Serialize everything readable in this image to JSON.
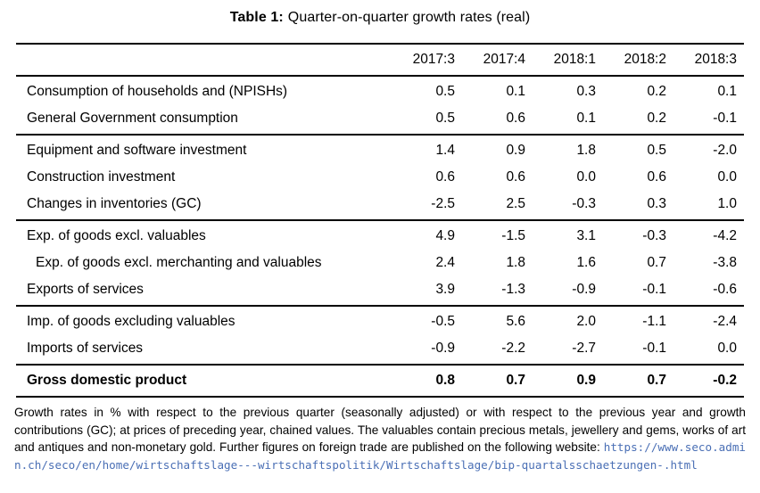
{
  "caption": {
    "label": "Table 1:",
    "text": "Quarter-on-quarter growth rates (real)"
  },
  "table": {
    "columns": [
      "2017:3",
      "2017:4",
      "2018:1",
      "2018:2",
      "2018:3"
    ],
    "groups": [
      {
        "rows": [
          {
            "label": "Consumption of households and (NPISHs)",
            "values": [
              "0.5",
              "0.1",
              "0.3",
              "0.2",
              "0.1"
            ]
          },
          {
            "label": "General Government consumption",
            "values": [
              "0.5",
              "0.6",
              "0.1",
              "0.2",
              "-0.1"
            ]
          }
        ]
      },
      {
        "rows": [
          {
            "label": "Equipment and software investment",
            "values": [
              "1.4",
              "0.9",
              "1.8",
              "0.5",
              "-2.0"
            ]
          },
          {
            "label": "Construction investment",
            "values": [
              "0.6",
              "0.6",
              "0.0",
              "0.6",
              "0.0"
            ]
          },
          {
            "label": "Changes in inventories (GC)",
            "values": [
              "-2.5",
              "2.5",
              "-0.3",
              "0.3",
              "1.0"
            ]
          }
        ]
      },
      {
        "rows": [
          {
            "label": "Exp. of goods excl. valuables",
            "values": [
              "4.9",
              "-1.5",
              "3.1",
              "-0.3",
              "-4.2"
            ]
          },
          {
            "label": "Exp. of goods excl. merchanting and valuables",
            "values": [
              "2.4",
              "1.8",
              "1.6",
              "0.7",
              "-3.8"
            ]
          },
          {
            "label": "Exports of services",
            "values": [
              "3.9",
              "-1.3",
              "-0.9",
              "-0.1",
              "-0.6"
            ]
          }
        ]
      },
      {
        "rows": [
          {
            "label": "Imp. of goods excluding valuables",
            "values": [
              "-0.5",
              "5.6",
              "2.0",
              "-1.1",
              "-2.4"
            ]
          },
          {
            "label": "Imports of services",
            "values": [
              "-0.9",
              "-2.2",
              "-2.7",
              "-0.1",
              "0.0"
            ]
          }
        ]
      },
      {
        "rows": [
          {
            "label": "Gross domestic product",
            "values": [
              "0.8",
              "0.7",
              "0.9",
              "0.7",
              "-0.2"
            ]
          }
        ]
      }
    ]
  },
  "footnote": {
    "text": "Growth rates in % with respect to the previous quarter (seasonally adjusted) or with respect to the previous year and growth contributions (GC); at prices of preceding year, chained values. The valuables contain precious metals, jewellery and gems, works of art and antiques and non-monetary gold. Further figures on foreign trade are published on the following website: ",
    "link": "https://www.seco.admin.ch/seco/en/home/wirtschaftslage---wirtschaftspolitik/Wirtschaftslage/bip-quartalsschaetzungen-.html",
    "link_color": "#4a6fb5"
  },
  "chart_data": {
    "type": "table",
    "title": "Table 1: Quarter-on-quarter growth rates (real)",
    "categories": [
      "2017:3",
      "2017:4",
      "2018:1",
      "2018:2",
      "2018:3"
    ],
    "series": [
      {
        "name": "Consumption of households and (NPISHs)",
        "values": [
          0.5,
          0.1,
          0.3,
          0.2,
          0.1
        ]
      },
      {
        "name": "General Government consumption",
        "values": [
          0.5,
          0.6,
          0.1,
          0.2,
          -0.1
        ]
      },
      {
        "name": "Equipment and software investment",
        "values": [
          1.4,
          0.9,
          1.8,
          0.5,
          -2.0
        ]
      },
      {
        "name": "Construction investment",
        "values": [
          0.6,
          0.6,
          0.0,
          0.6,
          0.0
        ]
      },
      {
        "name": "Changes in inventories (GC)",
        "values": [
          -2.5,
          2.5,
          -0.3,
          0.3,
          1.0
        ]
      },
      {
        "name": "Exp. of goods excl. valuables",
        "values": [
          4.9,
          -1.5,
          3.1,
          -0.3,
          -4.2
        ]
      },
      {
        "name": "Exp. of goods excl. merchanting and valuables",
        "values": [
          2.4,
          1.8,
          1.6,
          0.7,
          -3.8
        ]
      },
      {
        "name": "Exports of services",
        "values": [
          3.9,
          -1.3,
          -0.9,
          -0.1,
          -0.6
        ]
      },
      {
        "name": "Imp. of goods excluding valuables",
        "values": [
          -0.5,
          5.6,
          2.0,
          -1.1,
          -2.4
        ]
      },
      {
        "name": "Imports of services",
        "values": [
          -0.9,
          -2.2,
          -2.7,
          -0.1,
          0.0
        ]
      },
      {
        "name": "Gross domestic product",
        "values": [
          0.8,
          0.7,
          0.9,
          0.7,
          -0.2
        ]
      }
    ]
  }
}
